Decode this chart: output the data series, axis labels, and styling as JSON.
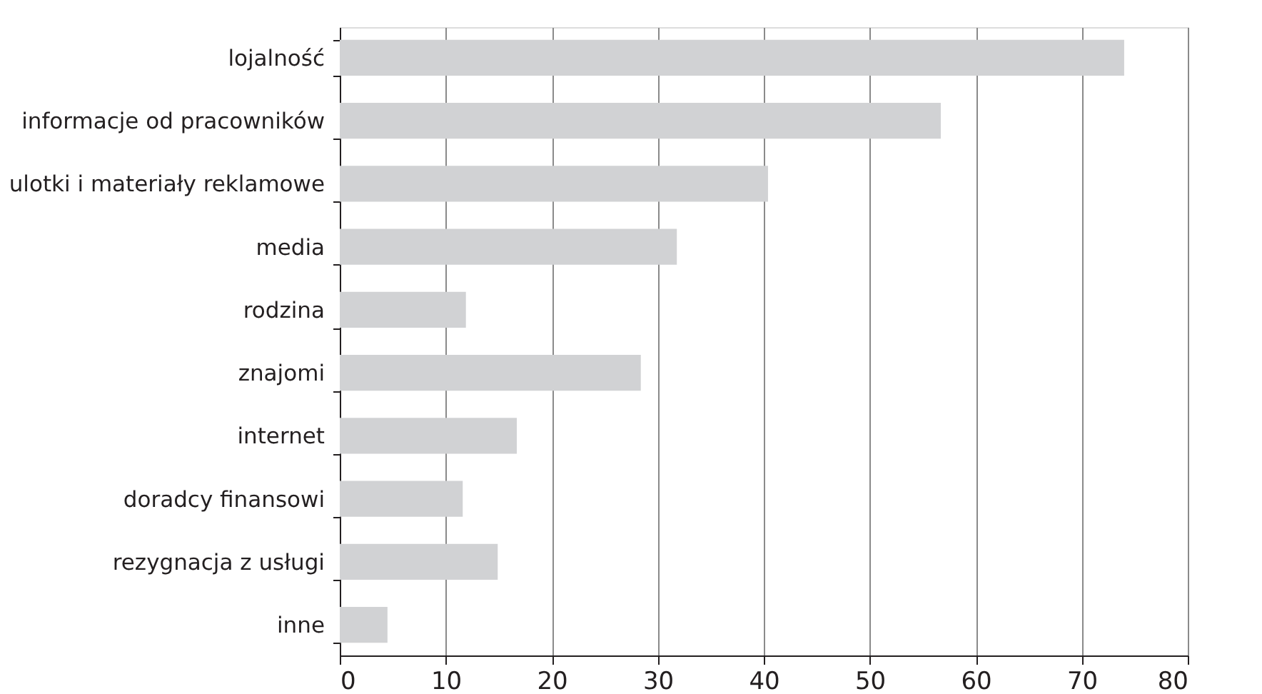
{
  "chart_data": {
    "type": "bar",
    "orientation": "horizontal",
    "categories": [
      "lojalność",
      "informacje od pracowników",
      "ulotki i materiały reklamowe",
      "media",
      "rodzina",
      "znajomi",
      "internet",
      "doradcy finansowi",
      "rezygnacja z usługi",
      "inne"
    ],
    "values": [
      74.0,
      56.7,
      40.4,
      31.8,
      11.9,
      28.4,
      16.7,
      11.6,
      14.9,
      4.5
    ],
    "color": "#d1d2d4",
    "xlim": [
      0,
      80
    ],
    "xticks": [
      0,
      10,
      20,
      30,
      40,
      50,
      60,
      70,
      80
    ],
    "grid": "x"
  }
}
